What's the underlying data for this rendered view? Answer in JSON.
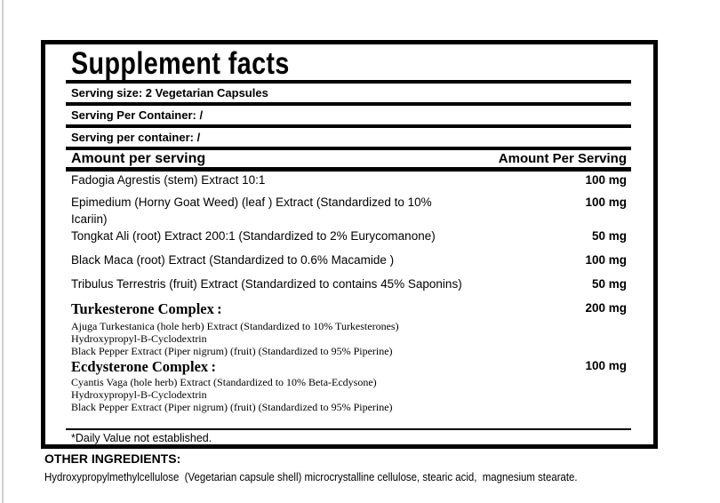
{
  "colors": {
    "text": "#000000",
    "border": "#000000",
    "background": "#ffffff",
    "scan_edge": "#d2d2d2"
  },
  "panel": {
    "title": "Supplement facts",
    "serving_lines": [
      "Serving size: 2 Vegetarian Capsules",
      "Serving Per Container: /",
      "Serving per container: /"
    ],
    "header": {
      "left": "Amount per serving",
      "right": "Amount Per Serving"
    },
    "ingredients": [
      {
        "name": "Fadogia Agrestis (stem) Extract 10:1",
        "amount": "100 mg"
      },
      {
        "name": "Epimedium (Horny Goat Weed) (leaf ) Extract (Standardized to 10%\nIcariin)",
        "amount": "100 mg"
      },
      {
        "name": "Tongkat Ali (root) Extract 200:1 (Standardized to 2% Eurycomanone)",
        "amount": "50 mg"
      },
      {
        "name": "Black Maca (root) Extract (Standardized to 0.6% Macamide )",
        "amount": "100 mg"
      },
      {
        "name": "Tribulus Terrestris (fruit) Extract (Standardized to contains 45% Saponins)",
        "amount": "50 mg"
      }
    ],
    "complexes": [
      {
        "title": "Turkesterone Complex :",
        "amount": "200 mg",
        "subs": [
          "Ajuga Turkestanica (hole herb) Extract (Standardized to 10% Turkesterones)",
          "Hydroxypropyl-B-Cyclodextrin",
          "Black Pepper Extract (Piper nigrum) (fruit) (Standardized to 95% Piperine)"
        ]
      },
      {
        "title": "Ecdysterone Complex :",
        "amount": "100 mg",
        "subs": [
          "Cyantis Vaga (hole herb) Extract (Standardized to 10% Beta-Ecdysone)",
          "Hydroxypropyl-B-Cyclodextrin",
          "Black Pepper Extract (Piper nigrum) (fruit) (Standardized to 95% Piperine)"
        ]
      }
    ],
    "footnote": "*Daily Value not established."
  },
  "other_ingredients": {
    "title": "OTHER INGREDIENTS:",
    "text": "Hydroxypropylmethylcellulose  (Vegetarian capsule shell) microcrystalline cellulose, stearic acid,  magnesium stearate."
  }
}
